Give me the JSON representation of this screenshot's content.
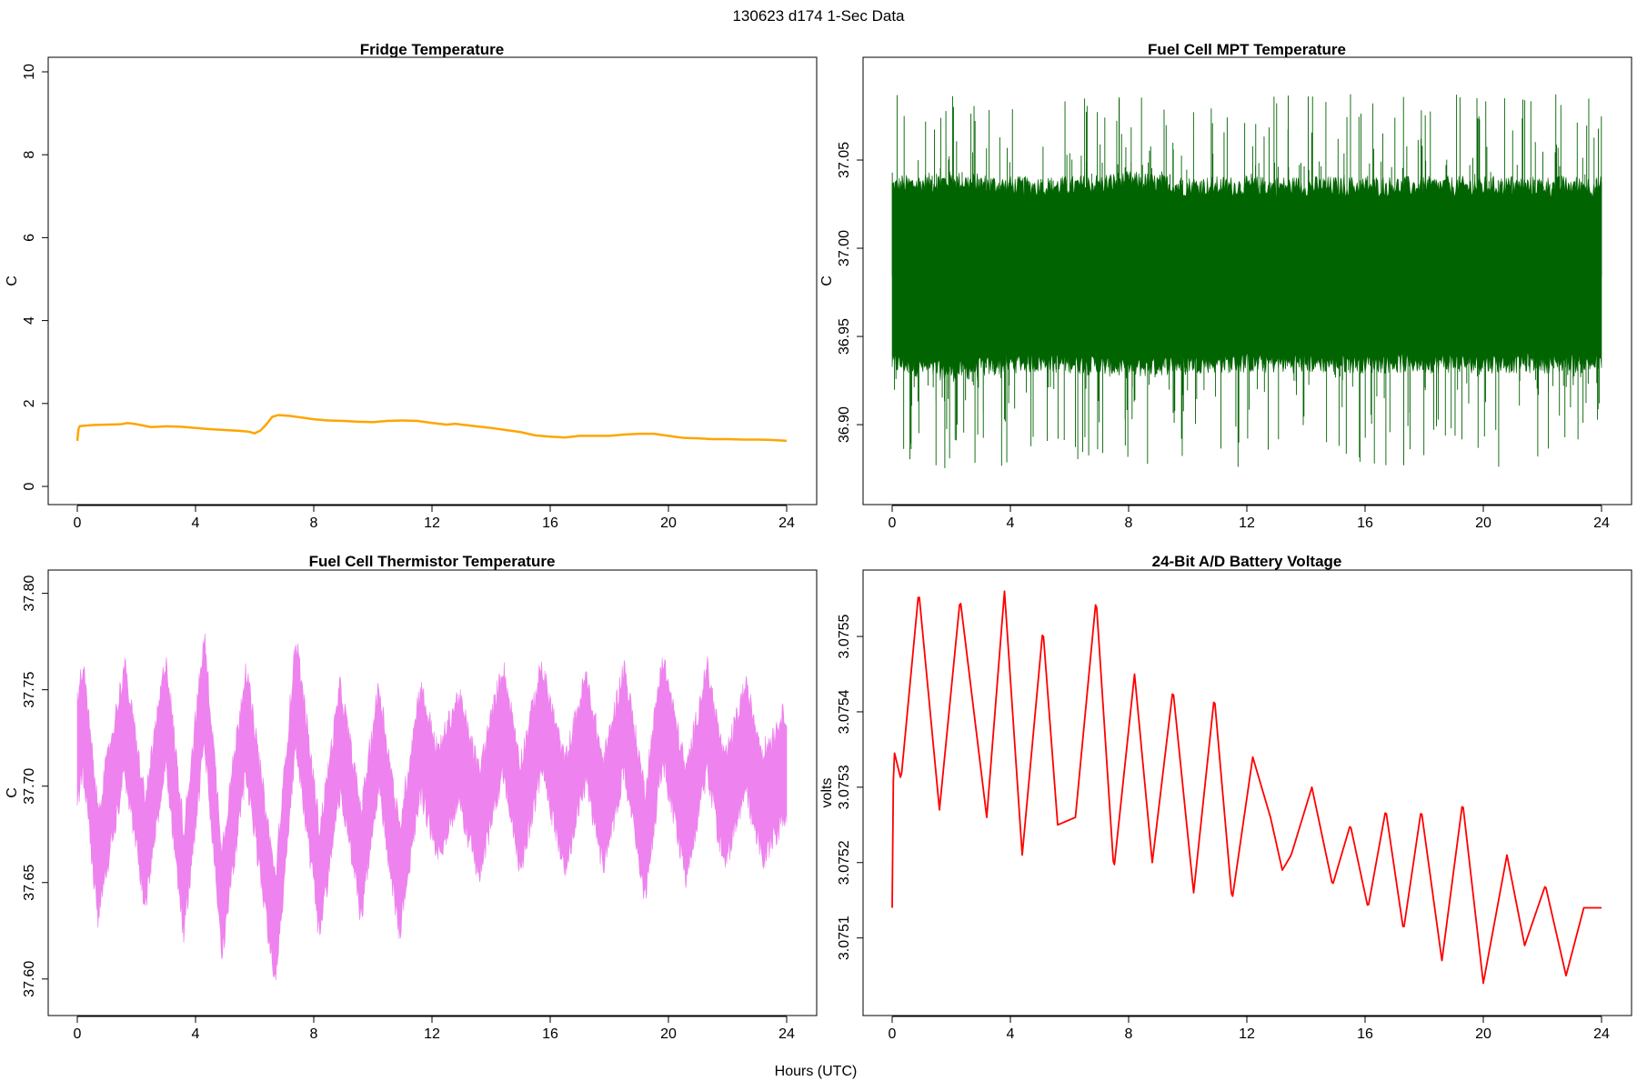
{
  "page": {
    "title": "130623   d174   1-Sec Data",
    "xlabel": "Hours (UTC)"
  },
  "chart_data": [
    {
      "type": "line",
      "title": "Fridge Temperature",
      "xlabel": "",
      "ylabel": "C",
      "xlim": [
        0,
        24
      ],
      "ylim": [
        0,
        10
      ],
      "xticks": [
        0,
        4,
        8,
        12,
        16,
        20,
        24
      ],
      "yticks": [
        0,
        2,
        4,
        6,
        8,
        10
      ],
      "ytick_labels": [
        "0",
        "2",
        "4",
        "6",
        "8",
        "10"
      ],
      "color": "#FFA500",
      "grid": false,
      "series": [
        {
          "x": [
            0,
            0.05,
            0.5,
            1.0,
            1.5,
            1.7,
            2.0,
            2.5,
            3.0,
            3.5,
            4.0,
            4.5,
            5.0,
            5.5,
            5.8,
            6.0,
            6.2,
            6.4,
            6.6,
            6.8,
            7.2,
            7.6,
            8.0,
            8.5,
            9.0,
            9.5,
            10.0,
            10.5,
            11.0,
            11.5,
            12.0,
            12.5,
            12.8,
            13.0,
            13.5,
            14.0,
            14.5,
            15.0,
            15.5,
            16.0,
            16.5,
            17.0,
            17.5,
            18.0,
            18.5,
            19.0,
            19.5,
            20.0,
            20.5,
            21.0,
            21.5,
            22.0,
            22.5,
            23.0,
            23.5,
            24.0
          ],
          "values": [
            1.1,
            1.45,
            1.48,
            1.49,
            1.5,
            1.53,
            1.5,
            1.43,
            1.45,
            1.44,
            1.41,
            1.38,
            1.36,
            1.34,
            1.32,
            1.28,
            1.35,
            1.5,
            1.68,
            1.72,
            1.7,
            1.66,
            1.62,
            1.59,
            1.58,
            1.56,
            1.55,
            1.58,
            1.59,
            1.58,
            1.53,
            1.49,
            1.51,
            1.49,
            1.45,
            1.41,
            1.36,
            1.31,
            1.23,
            1.2,
            1.18,
            1.22,
            1.22,
            1.22,
            1.25,
            1.27,
            1.27,
            1.22,
            1.17,
            1.16,
            1.14,
            1.14,
            1.13,
            1.13,
            1.12,
            1.1
          ]
        }
      ]
    },
    {
      "type": "line",
      "title": "Fuel Cell MPT Temperature",
      "xlabel": "",
      "ylabel": "C",
      "xlim": [
        0,
        24
      ],
      "ylim": [
        36.865,
        37.1
      ],
      "xticks": [
        0,
        4,
        8,
        12,
        16,
        20,
        24
      ],
      "yticks": [
        36.9,
        36.95,
        37.0,
        37.05
      ],
      "ytick_labels": [
        "36.90",
        "36.95",
        "37.00",
        "37.05"
      ],
      "color": "#006400",
      "grid": false,
      "series": [
        {
          "x": [
            0,
            2,
            4,
            6,
            8,
            10,
            12,
            14,
            16,
            18,
            20,
            22,
            24
          ],
          "values": [
            36.984,
            36.985,
            36.984,
            36.983,
            36.984,
            36.984,
            36.985,
            36.984,
            36.983,
            36.984,
            36.984,
            36.984,
            36.984
          ],
          "band_high": [
            37.035,
            37.038,
            37.035,
            37.035,
            37.038,
            37.035,
            37.035,
            37.035,
            37.035,
            37.035,
            37.035,
            37.035,
            37.035
          ],
          "band_low": [
            36.935,
            36.93,
            36.935,
            36.935,
            36.932,
            36.935,
            36.935,
            36.935,
            36.935,
            36.935,
            36.935,
            36.935,
            36.935
          ],
          "max": 37.09,
          "min": 36.875
        }
      ]
    },
    {
      "type": "line",
      "title": "Fuel Cell Thermistor Temperature",
      "xlabel": "",
      "ylabel": "C",
      "xlim": [
        0,
        24
      ],
      "ylim": [
        37.59,
        37.805
      ],
      "xticks": [
        0,
        4,
        8,
        12,
        16,
        20,
        24
      ],
      "yticks": [
        37.6,
        37.65,
        37.7,
        37.75,
        37.8
      ],
      "ytick_labels": [
        "37.60",
        "37.65",
        "37.70",
        "37.75",
        "37.80"
      ],
      "color": "#EE82EE",
      "grid": false,
      "series": [
        {
          "x": [
            0,
            0.2,
            0.7,
            1.6,
            2.3,
            3.0,
            3.6,
            4.3,
            4.9,
            5.7,
            6.7,
            7.4,
            8.2,
            8.9,
            9.6,
            10.2,
            10.9,
            11.6,
            12.2,
            12.9,
            13.6,
            14.4,
            15.0,
            15.7,
            16.5,
            17.2,
            17.8,
            18.5,
            19.2,
            19.8,
            20.6,
            21.3,
            21.9,
            22.6,
            23.2,
            23.9,
            24.0
          ],
          "values": [
            37.72,
            37.735,
            37.66,
            37.735,
            37.665,
            37.74,
            37.65,
            37.75,
            37.64,
            37.735,
            37.625,
            37.75,
            37.65,
            37.725,
            37.66,
            37.725,
            37.65,
            37.725,
            37.69,
            37.72,
            37.68,
            37.735,
            37.685,
            37.735,
            37.685,
            37.73,
            37.685,
            37.735,
            37.67,
            37.74,
            37.68,
            37.735,
            37.685,
            37.725,
            37.69,
            37.71,
            37.71
          ],
          "band_half_width": 0.027
        }
      ]
    },
    {
      "type": "line",
      "title": "24-Bit A/D Battery Voltage",
      "xlabel": "",
      "ylabel": "volts",
      "xlim": [
        0,
        24
      ],
      "ylim": [
        3.07502,
        3.07557
      ],
      "xticks": [
        0,
        4,
        8,
        12,
        16,
        20,
        24
      ],
      "yticks": [
        3.0751,
        3.0752,
        3.0753,
        3.0754,
        3.0755
      ],
      "ytick_labels": [
        "3.0751",
        "3.0752",
        "3.0753",
        "3.0754",
        "3.0755"
      ],
      "color": "#FF0000",
      "grid": false,
      "series": [
        {
          "x": [
            0,
            0.05,
            0.3,
            0.9,
            1.6,
            2.3,
            3.2,
            3.8,
            4.4,
            5.1,
            5.6,
            6.2,
            6.9,
            7.5,
            8.2,
            8.8,
            9.5,
            10.2,
            10.9,
            11.5,
            12.2,
            12.8,
            13.2,
            13.5,
            14.2,
            14.9,
            15.5,
            16.1,
            16.7,
            17.3,
            17.9,
            18.6,
            19.3,
            20.0,
            20.8,
            21.4,
            22.1,
            22.8,
            23.4,
            23.9,
            24.0
          ],
          "values": [
            3.07514,
            3.07535,
            3.07531,
            3.07556,
            3.07527,
            3.07555,
            3.07526,
            3.07556,
            3.07521,
            3.07551,
            3.07525,
            3.07526,
            3.07555,
            3.07519,
            3.07545,
            3.0752,
            3.07543,
            3.07516,
            3.07542,
            3.07515,
            3.07534,
            3.07526,
            3.07519,
            3.07521,
            3.0753,
            3.07517,
            3.07525,
            3.07514,
            3.07527,
            3.07511,
            3.07527,
            3.07507,
            3.07528,
            3.07504,
            3.07521,
            3.07509,
            3.07517,
            3.07505,
            3.07514,
            3.07514,
            3.07514
          ]
        }
      ]
    }
  ]
}
